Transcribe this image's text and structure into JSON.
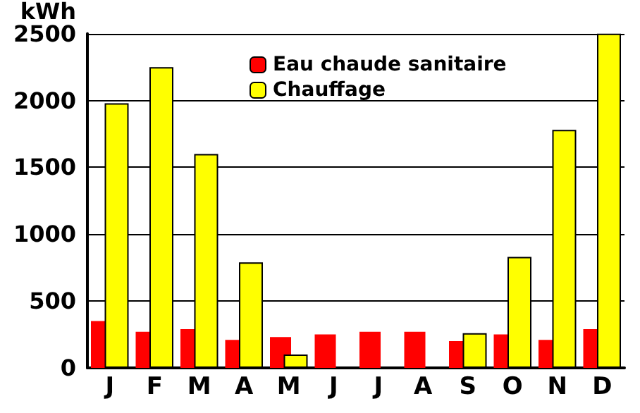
{
  "chart_data": {
    "type": "bar",
    "ylabel": "kWh",
    "categories": [
      "J",
      "F",
      "M",
      "A",
      "M",
      "J",
      "J",
      "A",
      "S",
      "O",
      "N",
      "D"
    ],
    "series": [
      {
        "name": "Eau chaude sanitaire",
        "color": "#ff0000",
        "values": [
          350,
          270,
          290,
          210,
          230,
          250,
          270,
          270,
          200,
          250,
          210,
          290
        ]
      },
      {
        "name": "Chauffage",
        "color": "#ffff00",
        "values": [
          1980,
          2250,
          1600,
          790,
          100,
          null,
          null,
          null,
          260,
          830,
          1780,
          2500
        ]
      }
    ],
    "ylim": [
      0,
      2500
    ],
    "yticks": [
      0,
      500,
      1000,
      1500,
      2000,
      2500
    ],
    "grid": "y",
    "legend": "top left"
  }
}
